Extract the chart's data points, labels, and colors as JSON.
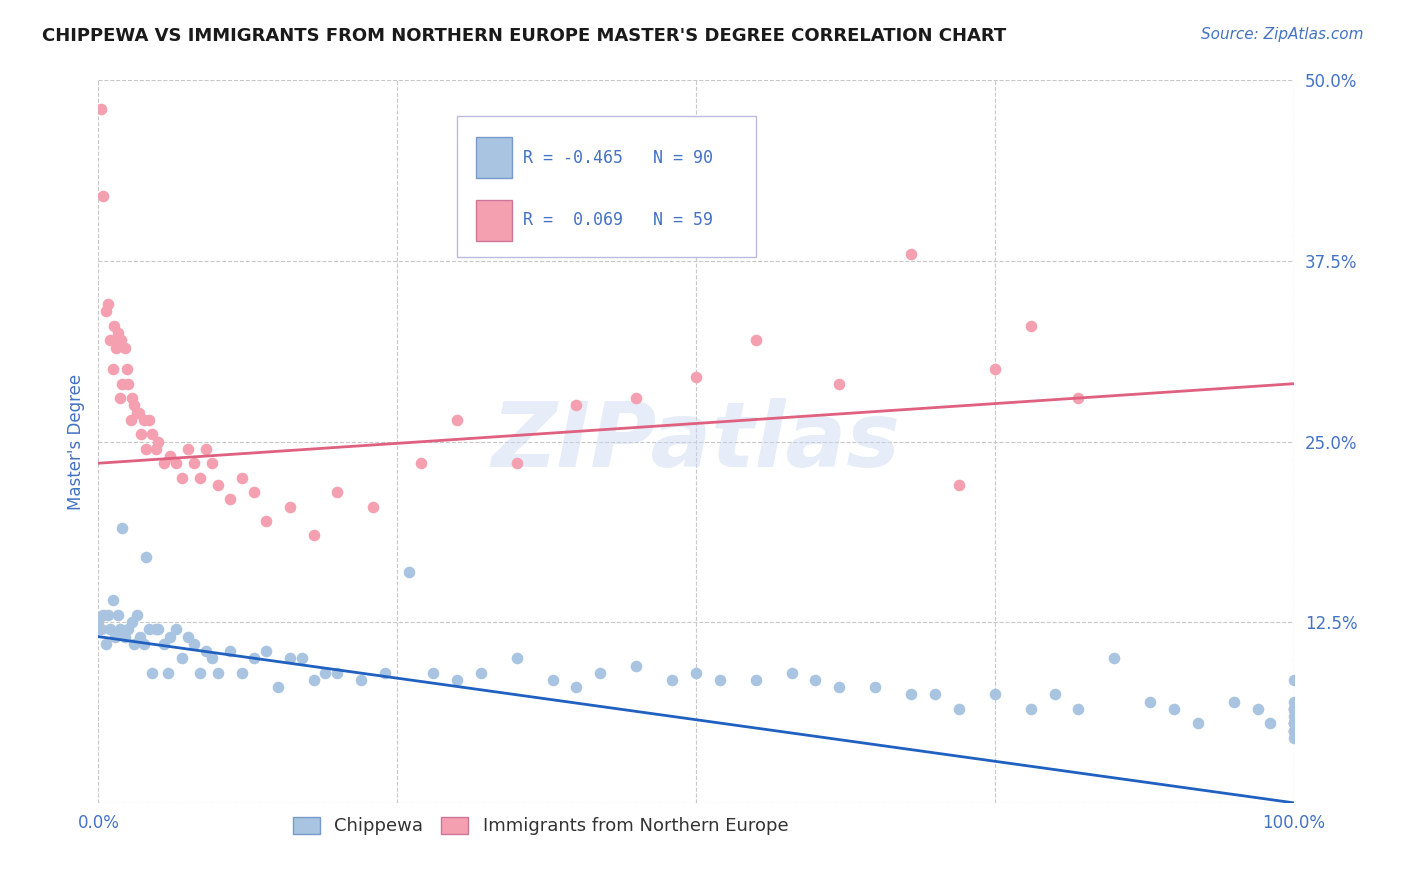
{
  "title": "CHIPPEWA VS IMMIGRANTS FROM NORTHERN EUROPE MASTER'S DEGREE CORRELATION CHART",
  "source": "Source: ZipAtlas.com",
  "ylabel": "Master's Degree",
  "watermark": "ZIPatlas",
  "xmin": 0.0,
  "xmax": 1.0,
  "ymin": 0.0,
  "ymax": 0.5,
  "xtick_positions": [
    0.0,
    0.25,
    0.5,
    0.75,
    1.0
  ],
  "xticklabels": [
    "0.0%",
    "",
    "",
    "",
    "100.0%"
  ],
  "ytick_positions": [
    0.0,
    0.125,
    0.25,
    0.375,
    0.5
  ],
  "yticklabels": [
    "",
    "12.5%",
    "25.0%",
    "37.5%",
    "50.0%"
  ],
  "blue_color": "#a8c4e0",
  "pink_color": "#f4a0b0",
  "blue_line_color": "#2060c0",
  "pink_line_color": "#e06080",
  "blue_R": -0.465,
  "blue_N": 90,
  "pink_R": 0.069,
  "pink_N": 59,
  "blue_intercept": 0.115,
  "blue_slope": -0.115,
  "pink_intercept": 0.235,
  "pink_slope": 0.055,
  "blue_series_x": [
    0.0,
    0.002,
    0.004,
    0.006,
    0.008,
    0.01,
    0.012,
    0.014,
    0.016,
    0.018,
    0.02,
    0.022,
    0.025,
    0.028,
    0.03,
    0.032,
    0.035,
    0.038,
    0.04,
    0.042,
    0.045,
    0.048,
    0.05,
    0.055,
    0.058,
    0.06,
    0.065,
    0.07,
    0.075,
    0.08,
    0.085,
    0.09,
    0.095,
    0.1,
    0.11,
    0.12,
    0.13,
    0.14,
    0.15,
    0.16,
    0.17,
    0.18,
    0.19,
    0.2,
    0.22,
    0.24,
    0.26,
    0.28,
    0.3,
    0.32,
    0.35,
    0.38,
    0.4,
    0.42,
    0.45,
    0.48,
    0.5,
    0.52,
    0.55,
    0.58,
    0.6,
    0.62,
    0.65,
    0.68,
    0.7,
    0.72,
    0.75,
    0.78,
    0.8,
    0.82,
    0.85,
    0.88,
    0.9,
    0.92,
    0.95,
    0.97,
    0.98,
    1.0,
    1.0,
    1.0,
    1.0,
    1.0,
    1.0,
    1.0,
    1.0,
    1.0,
    1.0,
    1.0,
    1.0,
    1.0
  ],
  "blue_series_y": [
    0.125,
    0.12,
    0.13,
    0.11,
    0.13,
    0.12,
    0.14,
    0.115,
    0.13,
    0.12,
    0.19,
    0.115,
    0.12,
    0.125,
    0.11,
    0.13,
    0.115,
    0.11,
    0.17,
    0.12,
    0.09,
    0.12,
    0.12,
    0.11,
    0.09,
    0.115,
    0.12,
    0.1,
    0.115,
    0.11,
    0.09,
    0.105,
    0.1,
    0.09,
    0.105,
    0.09,
    0.1,
    0.105,
    0.08,
    0.1,
    0.1,
    0.085,
    0.09,
    0.09,
    0.085,
    0.09,
    0.16,
    0.09,
    0.085,
    0.09,
    0.1,
    0.085,
    0.08,
    0.09,
    0.095,
    0.085,
    0.09,
    0.085,
    0.085,
    0.09,
    0.085,
    0.08,
    0.08,
    0.075,
    0.075,
    0.065,
    0.075,
    0.065,
    0.075,
    0.065,
    0.1,
    0.07,
    0.065,
    0.055,
    0.07,
    0.065,
    0.055,
    0.07,
    0.085,
    0.065,
    0.05,
    0.055,
    0.065,
    0.045,
    0.065,
    0.055,
    0.06,
    0.055,
    0.05,
    0.05
  ],
  "pink_series_x": [
    0.002,
    0.004,
    0.006,
    0.008,
    0.01,
    0.012,
    0.013,
    0.015,
    0.016,
    0.017,
    0.018,
    0.019,
    0.02,
    0.022,
    0.024,
    0.025,
    0.027,
    0.028,
    0.03,
    0.032,
    0.034,
    0.036,
    0.038,
    0.04,
    0.042,
    0.045,
    0.048,
    0.05,
    0.055,
    0.06,
    0.065,
    0.07,
    0.075,
    0.08,
    0.085,
    0.09,
    0.095,
    0.1,
    0.11,
    0.12,
    0.13,
    0.14,
    0.16,
    0.18,
    0.2,
    0.23,
    0.27,
    0.3,
    0.35,
    0.4,
    0.45,
    0.5,
    0.55,
    0.62,
    0.68,
    0.72,
    0.78,
    0.82,
    0.75
  ],
  "pink_series_y": [
    0.48,
    0.42,
    0.34,
    0.345,
    0.32,
    0.3,
    0.33,
    0.315,
    0.325,
    0.32,
    0.28,
    0.32,
    0.29,
    0.315,
    0.3,
    0.29,
    0.265,
    0.28,
    0.275,
    0.27,
    0.27,
    0.255,
    0.265,
    0.245,
    0.265,
    0.255,
    0.245,
    0.25,
    0.235,
    0.24,
    0.235,
    0.225,
    0.245,
    0.235,
    0.225,
    0.245,
    0.235,
    0.22,
    0.21,
    0.225,
    0.215,
    0.195,
    0.205,
    0.185,
    0.215,
    0.205,
    0.235,
    0.265,
    0.235,
    0.275,
    0.28,
    0.295,
    0.32,
    0.29,
    0.38,
    0.22,
    0.33,
    0.28,
    0.3
  ],
  "title_color": "#1a1a1a",
  "axis_color": "#4472c4",
  "tick_color": "#4472c4",
  "grid_color": "#c8c8c8",
  "background_color": "#ffffff",
  "legend_blue_label": "Chippewa",
  "legend_pink_label": "Immigrants from Northern Europe"
}
